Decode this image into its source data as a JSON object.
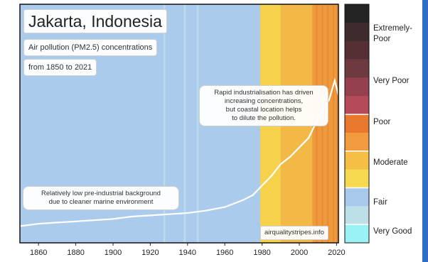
{
  "chart_data": {
    "type": "heatmap",
    "title": "Jakarta, Indonesia",
    "subtitle_lines": [
      "Air pollution (PM2.5) concentrations",
      "from 1850 to 2021"
    ],
    "x_range": [
      1850,
      2021
    ],
    "x_ticks": [
      1860,
      1880,
      1900,
      1920,
      1940,
      1960,
      1980,
      2000,
      2020
    ],
    "stripe_categories": [
      {
        "from": 1850,
        "to": 1927,
        "category": "Fair"
      },
      {
        "from": 1927,
        "to": 1928,
        "category": "Fair (lighter)"
      },
      {
        "from": 1928,
        "to": 1938,
        "category": "Fair"
      },
      {
        "from": 1938,
        "to": 1939,
        "category": "Fair (lighter)"
      },
      {
        "from": 1939,
        "to": 1945,
        "category": "Fair"
      },
      {
        "from": 1945,
        "to": 1946,
        "category": "Fair (lighter)"
      },
      {
        "from": 1946,
        "to": 1979,
        "category": "Fair"
      },
      {
        "from": 1979,
        "to": 1990,
        "category": "Moderate"
      },
      {
        "from": 1990,
        "to": 2007,
        "category": "Moderate (darker)"
      },
      {
        "from": 2007,
        "to": 2021,
        "category": "Poor"
      }
    ],
    "trend_line": {
      "x": [
        1850,
        1860,
        1870,
        1880,
        1890,
        1900,
        1910,
        1920,
        1930,
        1940,
        1950,
        1960,
        1965,
        1970,
        1975,
        1980,
        1985,
        1990,
        1995,
        2000,
        2005,
        2010,
        2013,
        2016,
        2019,
        2021
      ],
      "y": [
        0.07,
        0.08,
        0.085,
        0.09,
        0.095,
        0.1,
        0.11,
        0.115,
        0.12,
        0.125,
        0.135,
        0.15,
        0.165,
        0.18,
        0.2,
        0.24,
        0.28,
        0.33,
        0.36,
        0.4,
        0.44,
        0.52,
        0.56,
        0.6,
        0.68,
        0.62
      ]
    },
    "legend": {
      "placement": "right",
      "swatches": [
        "#232323",
        "#3e2b2d",
        "#552f34",
        "#6d3a3f",
        "#94404e",
        "#b54a5a",
        "#e9782f",
        "#f19a3e",
        "#f5bf45",
        "#f6d94f",
        "#a9c9ec",
        "#bcdfe8",
        "#9bf2f5"
      ],
      "labels": [
        "Extremely-\nPoor",
        "Very Poor",
        "Poor",
        "Moderate",
        "Fair",
        "Very Good"
      ]
    },
    "annotations": [
      "Rapid industrialisation has driven\nincreasing concentrations,\nbut coastal location helps\nto dilute the pollution.",
      "Relatively low pre-industrial background\ndue to cleaner marine environment"
    ],
    "source": "airqualitystripes.info",
    "colors": {
      "fair": "#aacbec",
      "fair_light": "#bcd9ee",
      "moderate": "#f6d24c",
      "moderate_dark": "#f2b947",
      "poor": "#ee9a3c",
      "poor_dark": "#e98a30",
      "line": "#ffffff",
      "border": "#111111",
      "right_edge": "#2f6ec6"
    }
  }
}
